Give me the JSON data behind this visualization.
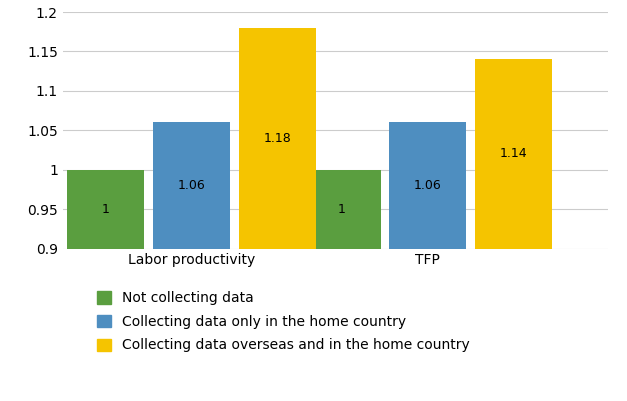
{
  "categories": [
    "Labor productivity",
    "TFP"
  ],
  "series": [
    {
      "label": "Not collecting data",
      "values": [
        1.0,
        1.0
      ],
      "color": "#5a9e3f"
    },
    {
      "label": "Collecting data only in the home country",
      "values": [
        1.06,
        1.06
      ],
      "color": "#4e8ec0"
    },
    {
      "label": "Collecting data overseas and in the home country",
      "values": [
        1.18,
        1.14
      ],
      "color": "#f5c400"
    }
  ],
  "ylim": [
    0.9,
    1.2
  ],
  "yticks": [
    0.9,
    0.95,
    1.0,
    1.05,
    1.1,
    1.15,
    1.2
  ],
  "ytick_labels": [
    "0.9",
    "0.95",
    "1",
    "1.05",
    "1.1",
    "1.15",
    "1.2"
  ],
  "bar_width": 0.18,
  "background_color": "#ffffff",
  "grid_color": "#cccccc",
  "label_fontsize": 10,
  "tick_fontsize": 10,
  "legend_fontsize": 10,
  "value_fontsize": 9,
  "value_labels": [
    [
      "1",
      "1.06",
      "1.18"
    ],
    [
      "1",
      "1.06",
      "1.14"
    ]
  ]
}
